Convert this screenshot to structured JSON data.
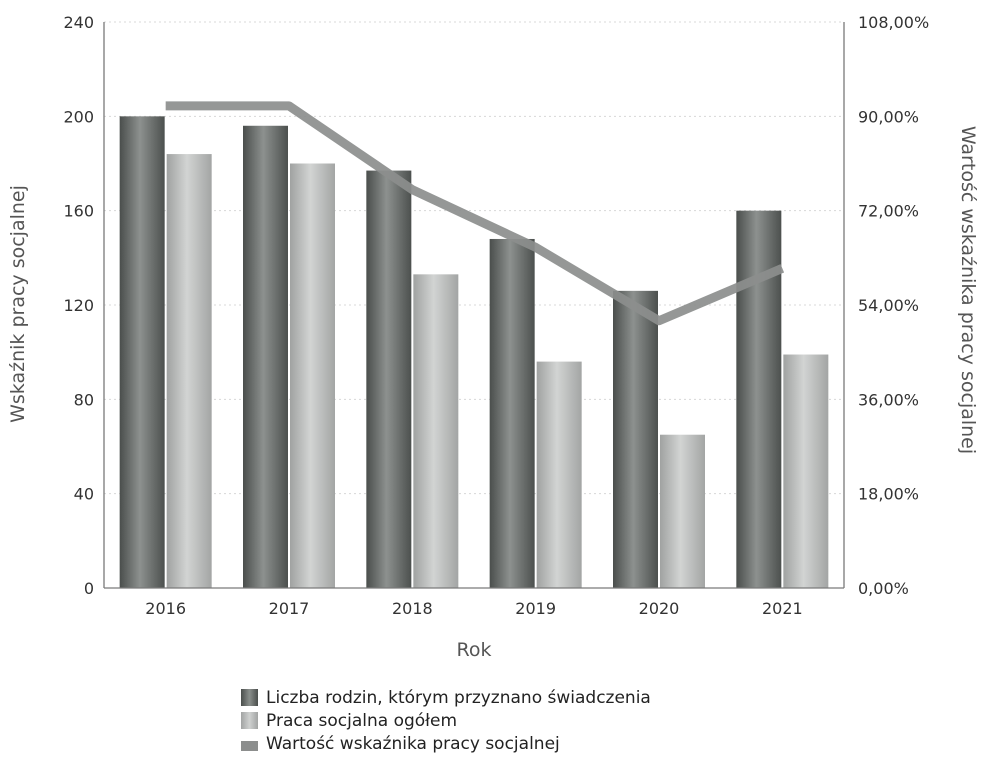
{
  "chart_data": {
    "type": "bar",
    "categories": [
      "2016",
      "2017",
      "2018",
      "2019",
      "2020",
      "2021"
    ],
    "xlabel": "Rok",
    "ylabel": "Wskaźnik pracy socjalnej",
    "y2label": "Wartość wskaźnika pracy socjalnej",
    "ylim": [
      0,
      240
    ],
    "yticks": [
      "0",
      "40",
      "80",
      "120",
      "160",
      "200",
      "240"
    ],
    "y2lim": [
      0,
      108
    ],
    "y2ticks": [
      "0,00%",
      "18,00%",
      "36,00%",
      "54,00%",
      "72,00%",
      "90,00%",
      "108,00%"
    ],
    "grid": true,
    "legend_position": "bottom",
    "series": [
      {
        "name": "Liczba rodzin, którym przyznano świadczenia",
        "type": "bar",
        "axis": "left",
        "color": "#6e7370",
        "values": [
          200,
          196,
          177,
          148,
          126,
          160
        ]
      },
      {
        "name": "Praca socjalna ogółem",
        "type": "bar",
        "axis": "left",
        "color": "#b4b6b5",
        "values": [
          184,
          180,
          133,
          96,
          65,
          99
        ]
      },
      {
        "name": "Wartość wskaźnika pracy socjalnej",
        "type": "line",
        "axis": "right",
        "color": "#8c8e8d",
        "values": [
          92,
          92,
          76,
          65,
          51,
          61
        ]
      }
    ]
  }
}
